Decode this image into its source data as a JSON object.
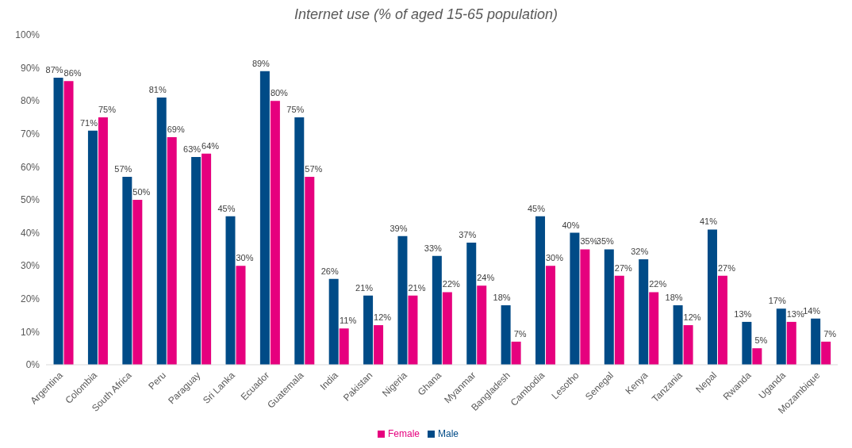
{
  "chart_data": {
    "type": "bar",
    "title": "Internet use (% of aged 15-65 population)",
    "categories": [
      "Argentina",
      "Colombia",
      "South Africa",
      "Peru",
      "Paraguay",
      "Sri Lanka",
      "Ecuador",
      "Guatemala",
      "India",
      "Pakistan",
      "Nigeria",
      "Ghana",
      "Myanmar",
      "Bangladesh",
      "Cambodia",
      "Lesotho",
      "Senegal",
      "Kenya",
      "Tanzania",
      "Nepal",
      "Rwanda",
      "Uganda",
      "Mozambique"
    ],
    "series": [
      {
        "name": "Male",
        "color": "#004b87",
        "values": [
          87,
          71,
          57,
          81,
          63,
          45,
          89,
          75,
          26,
          21,
          39,
          33,
          37,
          18,
          45,
          40,
          35,
          32,
          18,
          41,
          13,
          17,
          14
        ],
        "value_labels": [
          "87%",
          "71%",
          "57%",
          "81%",
          "63%",
          "45%",
          "89%",
          "75%",
          "26%",
          "21%",
          "39%",
          "33%",
          "37%",
          "18%",
          "45%",
          "40%",
          "35%",
          "32%",
          "18%",
          "41%",
          "13%",
          "17%",
          "14%"
        ]
      },
      {
        "name": "Female",
        "color": "#e6007e",
        "values": [
          86,
          75,
          50,
          69,
          64,
          30,
          80,
          57,
          11,
          12,
          21,
          22,
          24,
          7,
          30,
          35,
          27,
          22,
          12,
          27,
          5,
          13,
          7
        ],
        "value_labels": [
          "86%",
          "75%",
          "50%",
          "69%",
          "64%",
          "30%",
          "80%",
          "57%",
          "11%",
          "12%",
          "21%",
          "22%",
          "24%",
          "7%",
          "30%",
          "35%",
          "27%",
          "22%",
          "12%",
          "27%",
          "5%",
          "13%",
          "7%"
        ]
      }
    ],
    "ylim": [
      0,
      100
    ],
    "yticks": [
      {
        "value": 0,
        "label": "0%"
      },
      {
        "value": 10,
        "label": "10%"
      },
      {
        "value": 20,
        "label": "20%"
      },
      {
        "value": 30,
        "label": "30%"
      },
      {
        "value": 40,
        "label": "40%"
      },
      {
        "value": 50,
        "label": "50%"
      },
      {
        "value": 60,
        "label": "60%"
      },
      {
        "value": 70,
        "label": "70%"
      },
      {
        "value": 80,
        "label": "80%"
      },
      {
        "value": 90,
        "label": "90%"
      },
      {
        "value": 100,
        "label": "100%"
      }
    ],
    "grid": false,
    "legend": "bottom"
  }
}
